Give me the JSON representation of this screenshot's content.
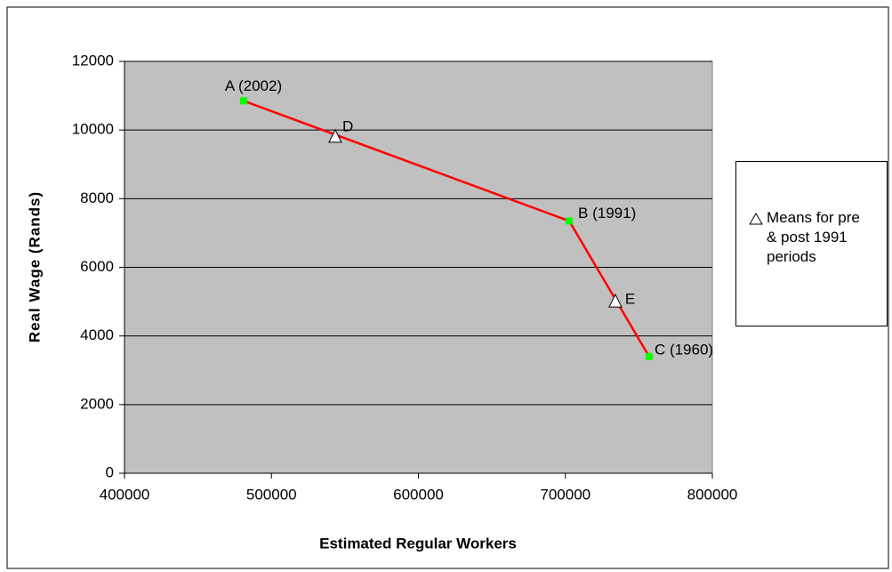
{
  "chart_data": {
    "type": "scatter",
    "xlabel": "Estimated Regular Workers",
    "ylabel": "Real Wage (Rands)",
    "xlim": [
      400000,
      800000
    ],
    "xticks": [
      400000,
      500000,
      600000,
      700000,
      800000
    ],
    "ylim": [
      0,
      12000
    ],
    "yticks": [
      0,
      2000,
      4000,
      6000,
      8000,
      10000,
      12000
    ],
    "grid": true,
    "plot_background": "#c0c0c0",
    "legend": "right",
    "series": [
      {
        "color": "#ff0000",
        "marker_color": "#00ff00",
        "marker": "square",
        "x": [
          481000,
          702600,
          757000
        ],
        "values": [
          10850,
          7350,
          3400
        ],
        "labels": [
          "A (2002)",
          "B (1991)",
          "C (1960)"
        ]
      },
      {
        "name": "Means for pre & post 1991 periods",
        "marker": "triangle",
        "color": "#ffffff",
        "x": [
          543400,
          734000
        ],
        "values": [
          9800,
          5000
        ],
        "labels": [
          "D",
          "E"
        ]
      }
    ]
  }
}
